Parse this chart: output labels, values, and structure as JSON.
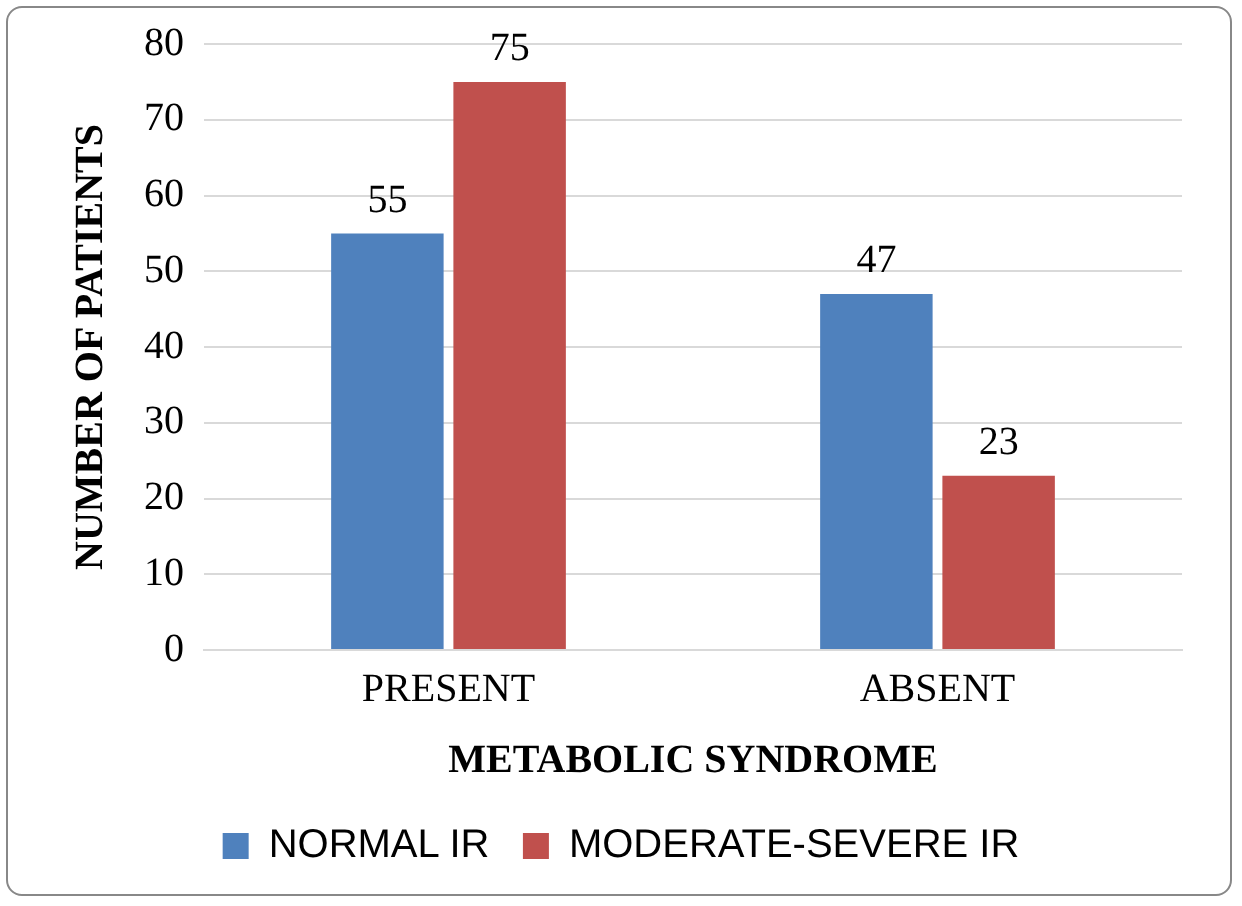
{
  "chart_data": {
    "type": "bar",
    "xlabel": "METABOLIC SYNDROME",
    "ylabel": "NUMBER OF PATIENTS",
    "categories": [
      "PRESENT",
      "ABSENT"
    ],
    "series": [
      {
        "name": "NORMAL IR",
        "color": "#4f81bd",
        "values": [
          55,
          47
        ]
      },
      {
        "name": "MODERATE-SEVERE IR",
        "color": "#c0504d",
        "values": [
          75,
          23
        ]
      }
    ],
    "ylim": [
      0,
      80
    ],
    "yticks": [
      0,
      10,
      20,
      30,
      40,
      50,
      60,
      70,
      80
    ],
    "grid": "y",
    "legend": "bottom",
    "data_labels": true
  }
}
